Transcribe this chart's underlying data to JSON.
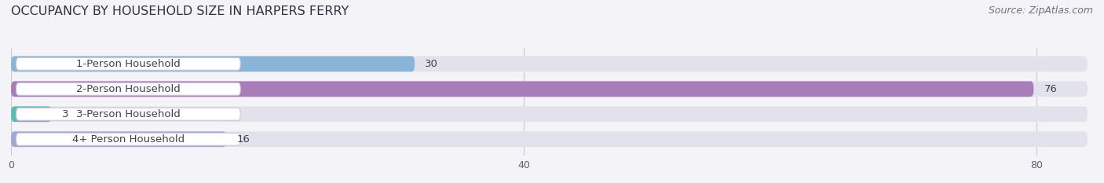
{
  "title": "OCCUPANCY BY HOUSEHOLD SIZE IN HARPERS FERRY",
  "source": "Source: ZipAtlas.com",
  "categories": [
    "1-Person Household",
    "2-Person Household",
    "3-Person Household",
    "4+ Person Household"
  ],
  "values": [
    30,
    76,
    3,
    16
  ],
  "bar_colors": [
    "#8ab4d8",
    "#a87db8",
    "#5bbcb4",
    "#9fa8d4"
  ],
  "background_color": "#f4f4f8",
  "bar_bg_color": "#e2e2ea",
  "xlim": [
    0,
    84
  ],
  "xticks": [
    0,
    40,
    80
  ],
  "title_fontsize": 11.5,
  "label_fontsize": 9.5,
  "value_fontsize": 9.5,
  "source_fontsize": 9
}
